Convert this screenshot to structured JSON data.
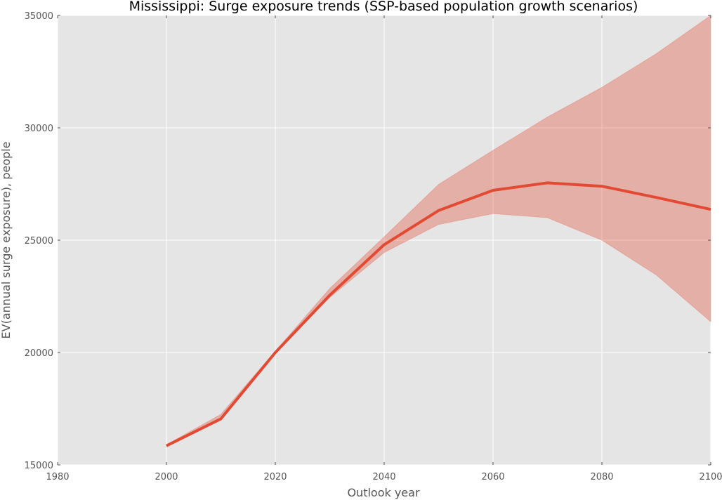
{
  "chart_data": {
    "type": "line",
    "title": "Mississippi: Surge exposure trends (SSP-based population growth scenarios)",
    "xlabel": "Outlook year",
    "ylabel": "EV(annual surge exposure), people",
    "xlim": [
      1980,
      2100
    ],
    "ylim": [
      15000,
      35000
    ],
    "xticks": [
      1980,
      2000,
      2020,
      2040,
      2060,
      2080,
      2100
    ],
    "yticks": [
      15000,
      20000,
      25000,
      30000,
      35000
    ],
    "grid": true,
    "legend": "none",
    "x": [
      2000,
      2010,
      2020,
      2030,
      2040,
      2050,
      2060,
      2070,
      2080,
      2090,
      2100
    ],
    "series": [
      {
        "values": [
          15850,
          17050,
          20000,
          22550,
          24800,
          26320,
          27220,
          27550,
          27400,
          26900,
          26370
        ],
        "color": "#e24a33"
      }
    ],
    "band": {
      "lower": [
        15830,
        17000,
        19980,
        22450,
        24450,
        25700,
        26180,
        26000,
        25000,
        23450,
        21370
      ],
      "upper": [
        15900,
        17250,
        20060,
        22850,
        25150,
        27480,
        29000,
        30480,
        31800,
        33300,
        35000
      ],
      "color": "#e24a33",
      "opacity": 0.35
    },
    "colors": {
      "plot_background": "#e5e5e5",
      "grid": "#ffffff"
    }
  }
}
